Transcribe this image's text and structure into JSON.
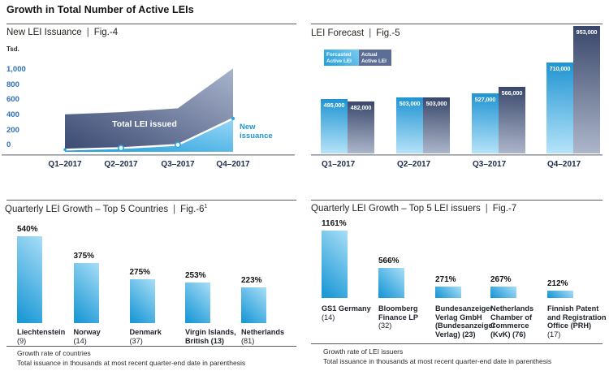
{
  "page": {
    "title": "Growth in Total Number of Active LEIs",
    "sep": "|"
  },
  "colors": {
    "accent_cyan": "#29a8e0",
    "slate_dark": "#3c4a6e",
    "slate_light": "#aeb7cb",
    "axis_label_blue": "#2e6fb7",
    "label_dark_navy": "#1c2b4a"
  },
  "chart_data": [
    {
      "id": "fig4",
      "type": "area",
      "title": "New LEI Issuance",
      "fig_label": "Fig.-4",
      "unit": "Tsd.",
      "values_unit": "thousands",
      "x": [
        "Q1–2017",
        "Q2–2017",
        "Q3–2017",
        "Q4–2017"
      ],
      "y_ticks": [
        {
          "label": "1,000",
          "value": 1000
        },
        {
          "label": "800",
          "value": 800
        },
        {
          "label": "600",
          "value": 600
        },
        {
          "label": "400",
          "value": 400
        },
        {
          "label": "200",
          "value": 200
        },
        {
          "label": "0",
          "value": 0
        }
      ],
      "ylim": [
        0,
        1000
      ],
      "series": [
        {
          "name": "Total LEI issued",
          "values": [
            400,
            430,
            480,
            1005
          ]
        },
        {
          "name": "New issuance",
          "values": [
            0,
            10,
            30,
            345
          ]
        }
      ]
    },
    {
      "id": "fig5",
      "type": "bar",
      "title": "LEI Forecast",
      "fig_label": "Fig.-5",
      "categories": [
        "Q1–2017",
        "Q2–2017",
        "Q3–2017",
        "Q4–2017"
      ],
      "legend": [
        {
          "lines": [
            "Forcasted",
            "Active LEI"
          ]
        },
        {
          "lines": [
            "Actual",
            "Active LEI"
          ]
        }
      ],
      "series": [
        {
          "name": "Forcasted Active LEI",
          "values": [
            495000,
            503000,
            527000,
            710000
          ],
          "labels": [
            "495,000",
            "503,000",
            "527,000",
            "710,000"
          ]
        },
        {
          "name": "Actual Active LEI",
          "values": [
            482000,
            503000,
            566000,
            953000
          ],
          "labels": [
            "482,000",
            "503,000",
            "566,000",
            "953,000"
          ]
        }
      ]
    },
    {
      "id": "fig6",
      "type": "bar",
      "title": "Quarterly LEI Growth – Top 5 Countries",
      "fig_label": "Fig.-6",
      "fig_sup": "1",
      "items": [
        {
          "label_lines": [
            "Liechtenstein",
            "(9)"
          ],
          "value": 540,
          "value_label": "540%"
        },
        {
          "label_lines": [
            "Norway",
            "(14)"
          ],
          "value": 375,
          "value_label": "375%"
        },
        {
          "label_lines": [
            "Denmark",
            "(37)"
          ],
          "value": 275,
          "value_label": "275%"
        },
        {
          "label_lines": [
            "Virgin Islands,",
            "British (13)"
          ],
          "value": 253,
          "value_label": "253%"
        },
        {
          "label_lines": [
            "Netherlands",
            "(81)"
          ],
          "value": 223,
          "value_label": "223%"
        }
      ],
      "footnotes": [
        "Growth rate of countries",
        "Total issuance in thousands at most recent quarter-end date in parenthesis"
      ]
    },
    {
      "id": "fig7",
      "type": "bar",
      "title": "Quarterly LEI Growth – Top 5 LEI issuers",
      "fig_label": "Fig.-7",
      "items": [
        {
          "label_lines": [
            "GS1 Germany",
            "(14)"
          ],
          "value": 1161,
          "value_label": "1161%"
        },
        {
          "label_lines": [
            "Bloomberg",
            "Finance LP",
            "(32)"
          ],
          "value": 566,
          "value_label": "566%"
        },
        {
          "label_lines": [
            "Bundesanzeiger",
            "Verlag GmbH",
            "(Bundesanzeiger",
            "Verlag) (23)"
          ],
          "value": 271,
          "value_label": "271%"
        },
        {
          "label_lines": [
            "Netherlands",
            "Chamber of",
            "Commerce",
            "(KvK) (76)"
          ],
          "value": 267,
          "value_label": "267%"
        },
        {
          "label_lines": [
            "Finnish Patent",
            "and Registration",
            "Office (PRH)",
            "(17)"
          ],
          "value": 212,
          "value_label": "212%"
        }
      ],
      "footnotes": [
        "Growth rate of LEI issuers",
        "Total issuance in thousands at most recent quarter-end date in parenthesis"
      ]
    }
  ]
}
